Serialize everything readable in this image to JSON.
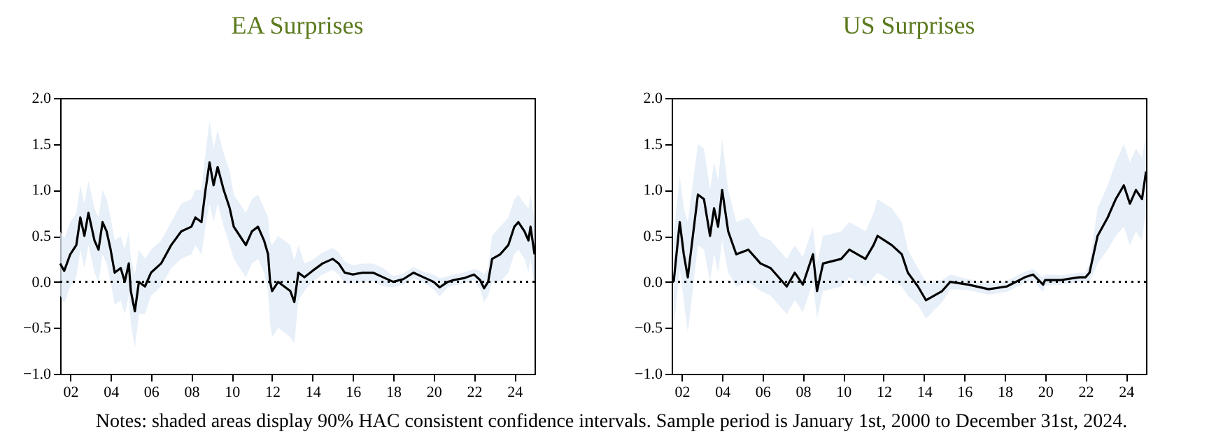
{
  "chart_data": [
    {
      "type": "line",
      "title": "EA Surprises",
      "xlim": [
        2001.5,
        2025
      ],
      "ylim": [
        -1,
        2
      ],
      "xticks": [
        {
          "value": 2002,
          "label": "02"
        },
        {
          "value": 2004,
          "label": "04"
        },
        {
          "value": 2006,
          "label": "06"
        },
        {
          "value": 2008,
          "label": "08"
        },
        {
          "value": 2010,
          "label": "10"
        },
        {
          "value": 2012,
          "label": "12"
        },
        {
          "value": 2014,
          "label": "14"
        },
        {
          "value": 2016,
          "label": "16"
        },
        {
          "value": 2018,
          "label": "18"
        },
        {
          "value": 2020,
          "label": "20"
        },
        {
          "value": 2022,
          "label": "22"
        },
        {
          "value": 2024,
          "label": "24"
        }
      ],
      "yticks": [
        {
          "value": -1,
          "label": "−1.0"
        },
        {
          "value": -0.5,
          "label": "−0.5"
        },
        {
          "value": 0,
          "label": "0.0"
        },
        {
          "value": 0.5,
          "label": "0.5"
        },
        {
          "value": 1,
          "label": "1.0"
        },
        {
          "value": 1.5,
          "label": "1.5"
        },
        {
          "value": 2,
          "label": "2.0"
        }
      ],
      "ref_lines": [
        {
          "axis": "y",
          "value": 0,
          "color": "#000000",
          "line_style": "dotted"
        }
      ],
      "annotations": [
        "Notes: shaded areas display 90% HAC consistent confidence intervals. Sample period is January 1st, 2000 to December 31st, 2024."
      ],
      "series": [
        {
          "color": "#000000",
          "x": [
            2001.5,
            2001.7,
            2002.0,
            2002.3,
            2002.5,
            2002.7,
            2002.9,
            2003.2,
            2003.4,
            2003.6,
            2003.8,
            2004.0,
            2004.2,
            2004.5,
            2004.7,
            2004.9,
            2005.0,
            2005.2,
            2005.4,
            2005.7,
            2006.0,
            2006.5,
            2007.0,
            2007.5,
            2008.0,
            2008.2,
            2008.5,
            2008.7,
            2008.9,
            2009.1,
            2009.3,
            2009.6,
            2009.9,
            2010.1,
            2010.4,
            2010.7,
            2011.0,
            2011.3,
            2011.6,
            2011.8,
            2011.9,
            2012.0,
            2012.3,
            2012.6,
            2012.9,
            2013.1,
            2013.3,
            2013.6,
            2014.0,
            2014.5,
            2015.0,
            2015.3,
            2015.6,
            2016.0,
            2016.5,
            2017.0,
            2017.5,
            2018.0,
            2018.5,
            2019.0,
            2019.5,
            2020.0,
            2020.3,
            2020.7,
            2021.0,
            2021.5,
            2022.0,
            2022.3,
            2022.5,
            2022.7,
            2022.9,
            2023.3,
            2023.7,
            2024.0,
            2024.2,
            2024.5,
            2024.7,
            2024.8,
            2025.0
          ],
          "values": [
            0.2,
            0.12,
            0.3,
            0.4,
            0.7,
            0.5,
            0.75,
            0.45,
            0.35,
            0.65,
            0.55,
            0.35,
            0.1,
            0.15,
            0.0,
            0.2,
            -0.1,
            -0.32,
            0.0,
            -0.05,
            0.1,
            0.2,
            0.4,
            0.55,
            0.6,
            0.7,
            0.65,
            1.0,
            1.3,
            1.05,
            1.25,
            1.0,
            0.8,
            0.6,
            0.5,
            0.4,
            0.55,
            0.6,
            0.45,
            0.3,
            0.0,
            -0.1,
            0.0,
            -0.05,
            -0.1,
            -0.22,
            0.1,
            0.05,
            0.12,
            0.2,
            0.25,
            0.2,
            0.1,
            0.08,
            0.1,
            0.1,
            0.05,
            0.0,
            0.03,
            0.1,
            0.05,
            0.0,
            -0.06,
            0.0,
            0.02,
            0.04,
            0.08,
            0.02,
            -0.07,
            0.0,
            0.25,
            0.3,
            0.4,
            0.6,
            0.65,
            0.55,
            0.45,
            0.6,
            0.3
          ],
          "lower": [
            -0.15,
            -0.23,
            -0.05,
            0.05,
            0.35,
            0.15,
            0.4,
            0.1,
            0,
            0.3,
            0.2,
            0,
            -0.25,
            -0.2,
            -0.35,
            -0.15,
            -0.45,
            -0.72,
            -0.35,
            -0.35,
            -0.15,
            -0.05,
            0.15,
            0.25,
            0.3,
            0.4,
            0.3,
            0.6,
            0.85,
            0.65,
            0.85,
            0.6,
            0.4,
            0.25,
            0.15,
            0.05,
            0.2,
            0.25,
            0.1,
            -0.1,
            -0.45,
            -0.6,
            -0.5,
            -0.55,
            -0.6,
            -0.67,
            -0.2,
            -0.1,
            0,
            0.08,
            0.13,
            0.08,
            -0.02,
            -0.02,
            0,
            0,
            -0.05,
            -0.06,
            -0.03,
            0.04,
            -0.01,
            -0.08,
            -0.16,
            -0.06,
            -0.04,
            -0.02,
            0.02,
            -0.08,
            -0.22,
            -0.15,
            0,
            0,
            0.1,
            0.3,
            0.35,
            0.25,
            0.1,
            0.25,
            -0.05
          ],
          "upper": [
            0.55,
            0.47,
            0.65,
            0.75,
            1.05,
            0.85,
            1.1,
            0.8,
            0.7,
            1.0,
            0.9,
            0.7,
            0.45,
            0.5,
            0.35,
            0.55,
            0.25,
            0.08,
            0.35,
            0.25,
            0.35,
            0.45,
            0.65,
            0.85,
            0.9,
            1.0,
            1.0,
            1.4,
            1.75,
            1.45,
            1.65,
            1.4,
            1.2,
            0.95,
            0.85,
            0.75,
            0.9,
            0.95,
            0.8,
            0.7,
            0.45,
            0.4,
            0.5,
            0.45,
            0.4,
            0.23,
            0.4,
            0.2,
            0.24,
            0.32,
            0.37,
            0.32,
            0.22,
            0.18,
            0.2,
            0.2,
            0.15,
            0.06,
            0.09,
            0.16,
            0.11,
            0.08,
            0.04,
            0.06,
            0.08,
            0.1,
            0.14,
            0.12,
            0.08,
            0.15,
            0.5,
            0.6,
            0.7,
            0.9,
            0.95,
            0.85,
            0.8,
            0.95,
            0.65
          ]
        }
      ]
    },
    {
      "type": "line",
      "title": "US Surprises",
      "xlim": [
        2001.5,
        2025
      ],
      "ylim": [
        -1,
        2
      ],
      "xticks": [
        {
          "value": 2002,
          "label": "02"
        },
        {
          "value": 2004,
          "label": "04"
        },
        {
          "value": 2006,
          "label": "06"
        },
        {
          "value": 2008,
          "label": "08"
        },
        {
          "value": 2010,
          "label": "10"
        },
        {
          "value": 2012,
          "label": "12"
        },
        {
          "value": 2014,
          "label": "14"
        },
        {
          "value": 2016,
          "label": "16"
        },
        {
          "value": 2018,
          "label": "18"
        },
        {
          "value": 2020,
          "label": "20"
        },
        {
          "value": 2022,
          "label": "22"
        },
        {
          "value": 2024,
          "label": "24"
        }
      ],
      "yticks": [
        {
          "value": -1,
          "label": "−1.0"
        },
        {
          "value": -0.5,
          "label": "−0.5"
        },
        {
          "value": 0,
          "label": "0.0"
        },
        {
          "value": 0.5,
          "label": "0.5"
        },
        {
          "value": 1,
          "label": "1.0"
        },
        {
          "value": 1.5,
          "label": "1.5"
        },
        {
          "value": 2,
          "label": "2.0"
        }
      ],
      "ref_lines": [
        {
          "axis": "y",
          "value": 0,
          "color": "#000000",
          "line_style": "dotted"
        }
      ],
      "series": [
        {
          "color": "#000000",
          "x": [
            2001.6,
            2001.9,
            2002.1,
            2002.3,
            2002.8,
            2003.1,
            2003.4,
            2003.6,
            2003.8,
            2004.0,
            2004.3,
            2004.7,
            2005.3,
            2005.9,
            2006.4,
            2007.2,
            2007.6,
            2008.0,
            2008.5,
            2008.7,
            2009.0,
            2009.9,
            2010.3,
            2011.1,
            2011.5,
            2011.7,
            2012.4,
            2012.9,
            2013.2,
            2013.7,
            2014.1,
            2014.9,
            2015.3,
            2016.2,
            2017.2,
            2018.1,
            2019.0,
            2019.4,
            2019.9,
            2020.0,
            2020.8,
            2021.7,
            2022.0,
            2022.2,
            2022.6,
            2023.1,
            2023.5,
            2023.9,
            2024.2,
            2024.5,
            2024.8,
            2025.0
          ],
          "values": [
            0.0,
            0.65,
            0.3,
            0.05,
            0.95,
            0.9,
            0.5,
            0.8,
            0.6,
            1.0,
            0.55,
            0.3,
            0.35,
            0.2,
            0.15,
            -0.05,
            0.1,
            -0.03,
            0.3,
            -0.1,
            0.2,
            0.25,
            0.35,
            0.25,
            0.4,
            0.5,
            0.4,
            0.3,
            0.1,
            -0.05,
            -0.2,
            -0.1,
            0.0,
            -0.03,
            -0.08,
            -0.05,
            0.05,
            0.08,
            -0.03,
            0.02,
            0.02,
            0.05,
            0.05,
            0.1,
            0.5,
            0.7,
            0.9,
            1.05,
            0.85,
            1.0,
            0.9,
            1.2
          ],
          "lower": [
            -0.5,
            0.15,
            -0.2,
            -0.55,
            0.4,
            0.35,
            0,
            0.3,
            0.1,
            0.45,
            0.1,
            -0.05,
            0,
            -0.1,
            -0.15,
            -0.35,
            -0.2,
            -0.33,
            0,
            -0.4,
            -0.1,
            -0.05,
            0.05,
            -0.05,
            0.05,
            0.1,
            0,
            -0.05,
            -0.15,
            -0.25,
            -0.4,
            -0.22,
            -0.08,
            -0.09,
            -0.14,
            -0.11,
            -0.01,
            0.02,
            -0.11,
            -0.04,
            -0.03,
            0,
            0,
            0,
            0.2,
            0.35,
            0.5,
            0.6,
            0.4,
            0.55,
            0.45,
            0.8
          ],
          "upper": [
            0.5,
            1.15,
            0.8,
            0.65,
            1.5,
            1.45,
            1.0,
            1.3,
            1.1,
            1.55,
            1.0,
            0.65,
            0.7,
            0.5,
            0.45,
            0.25,
            0.4,
            0.27,
            0.6,
            0.2,
            0.5,
            0.55,
            0.65,
            0.55,
            0.75,
            0.9,
            0.8,
            0.65,
            0.35,
            0.15,
            0,
            0.02,
            0.08,
            0.03,
            -0.02,
            0.01,
            0.11,
            0.14,
            0.05,
            0.08,
            0.07,
            0.1,
            0.1,
            0.2,
            0.8,
            1.05,
            1.3,
            1.5,
            1.3,
            1.45,
            1.35,
            1.6
          ]
        }
      ]
    }
  ]
}
